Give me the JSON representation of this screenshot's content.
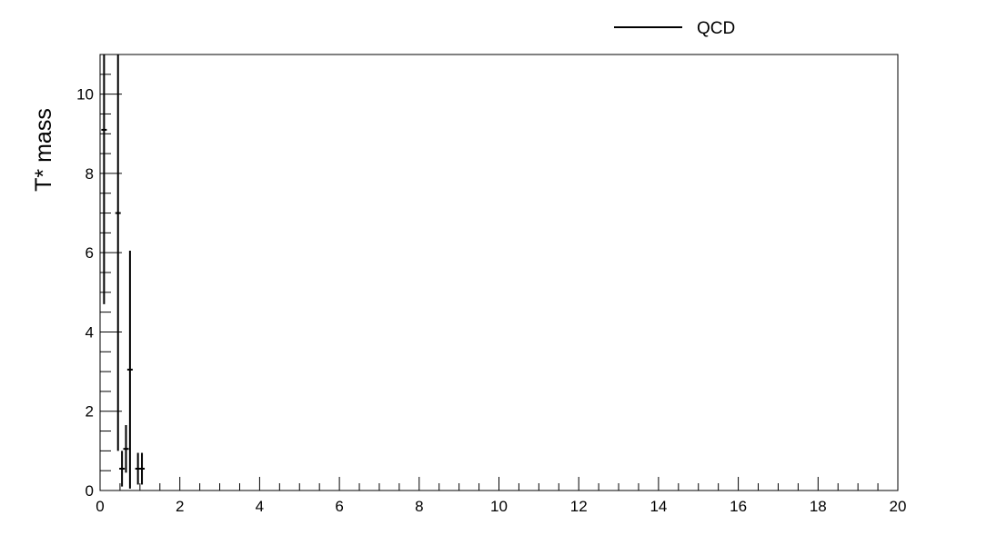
{
  "chart_data": {
    "type": "scatter",
    "style": "histogram-with-error-bars",
    "title": "",
    "xlabel": "",
    "ylabel": "T* mass",
    "xlim": [
      0,
      20
    ],
    "ylim": [
      0,
      11
    ],
    "x_ticks": [
      0,
      2,
      4,
      6,
      8,
      10,
      12,
      14,
      16,
      18,
      20
    ],
    "y_ticks": [
      0,
      2,
      4,
      6,
      8,
      10
    ],
    "grid": false,
    "legend_position": "top-center",
    "series": [
      {
        "name": "QCD",
        "color": "#000000",
        "points": [
          {
            "x": 0.1,
            "y": 9.1,
            "err": 4.4
          },
          {
            "x": 0.45,
            "y": 7.0,
            "err": 6.0
          },
          {
            "x": 0.55,
            "y": 0.55,
            "err": 0.45
          },
          {
            "x": 0.65,
            "y": 1.05,
            "err": 0.6
          },
          {
            "x": 0.75,
            "y": 3.05,
            "err": 3.0
          },
          {
            "x": 0.95,
            "y": 0.55,
            "err": 0.4
          },
          {
            "x": 1.05,
            "y": 0.55,
            "err": 0.4
          }
        ]
      }
    ]
  },
  "legend": {
    "entries": [
      {
        "label": "QCD"
      }
    ]
  }
}
